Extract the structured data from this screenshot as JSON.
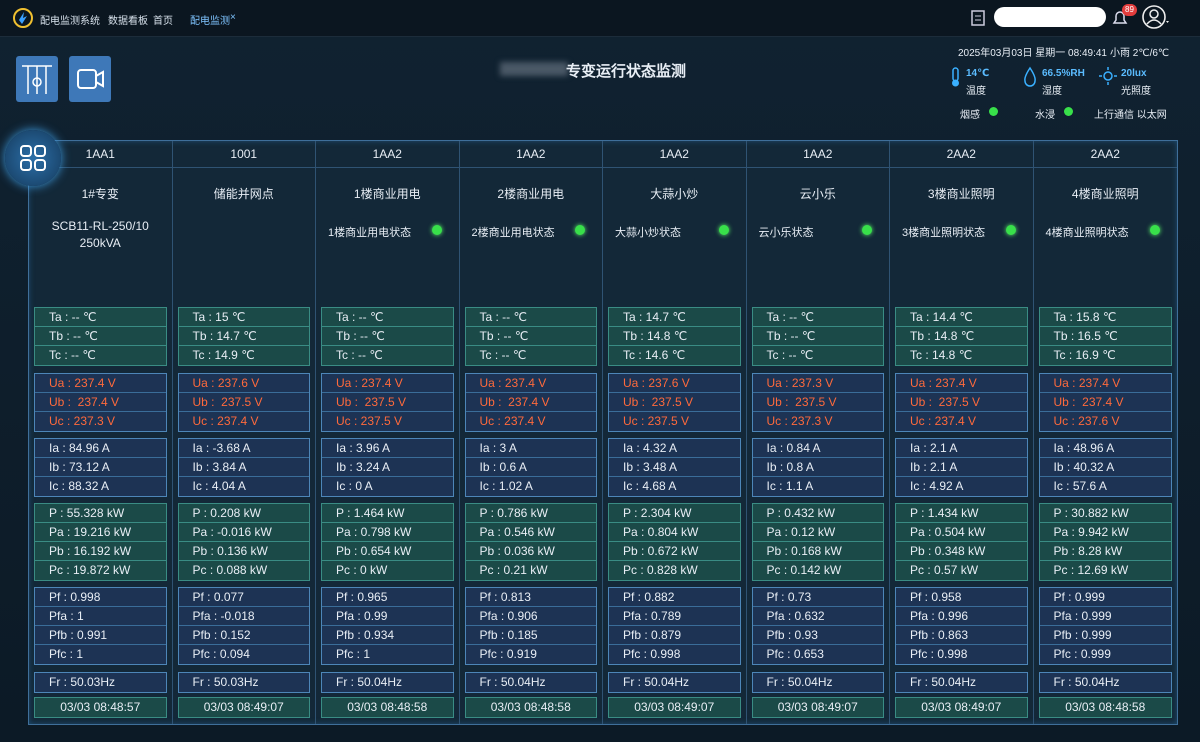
{
  "topbar": {
    "app_name": "配电监测系统",
    "tabs": [
      "数据看板",
      "首页",
      "配电监测"
    ],
    "close": "×",
    "badge": "89"
  },
  "header": {
    "title": "专变运行状态监测",
    "datetime": "2025年03月03日 星期一 08:49:41",
    "weather": "小雨 2℃/6℃",
    "env": [
      {
        "value": "14℃",
        "label": "温度"
      },
      {
        "value": "66.5%RH",
        "label": "湿度"
      },
      {
        "value": "20lux",
        "label": "光照度"
      }
    ],
    "status": [
      "烟感",
      "水浸",
      "上行通信 以太网"
    ]
  },
  "columns": [
    {
      "code": "1AA1",
      "name": "1#专变",
      "spec": [
        "SCB11-RL-250/10",
        "250kVA"
      ],
      "groups": [
        [
          "Ta : -- ℃",
          "Tb : -- ℃",
          "Tc : -- ℃"
        ],
        [
          "Ua : 237.4 V",
          "Ub :  237.4 V",
          "Uc : 237.3 V"
        ],
        [
          "Ia : 84.96 A",
          "Ib : 73.12 A",
          "Ic : 88.32 A"
        ],
        [
          "P : 55.328 kW",
          "Pa : 19.216 kW",
          "Pb : 16.192 kW",
          "Pc : 19.872 kW"
        ],
        [
          "Pf : 0.998",
          "Pfa : 1",
          "Pfb : 0.991",
          "Pfc : 1"
        ],
        [
          "Fr : 50.03Hz"
        ],
        [
          "03/03 08:48:57"
        ]
      ]
    },
    {
      "code": "1001",
      "name": "储能并网点",
      "groups": [
        [
          "Ta : 15 ℃",
          "Tb : 14.7 ℃",
          "Tc : 14.9 ℃"
        ],
        [
          "Ua : 237.6 V",
          "Ub :  237.5 V",
          "Uc : 237.4 V"
        ],
        [
          "Ia : -3.68 A",
          "Ib : 3.84 A",
          "Ic : 4.04 A"
        ],
        [
          "P : 0.208 kW",
          "Pa : -0.016 kW",
          "Pb : 0.136 kW",
          "Pc : 0.088 kW"
        ],
        [
          "Pf : 0.077",
          "Pfa : -0.018",
          "Pfb : 0.152",
          "Pfc : 0.094"
        ],
        [
          "Fr : 50.03Hz"
        ],
        [
          "03/03 08:49:07"
        ]
      ]
    },
    {
      "code": "1AA2",
      "name": "1楼商业用电",
      "status": "1楼商业用电状态",
      "groups": [
        [
          "Ta : -- ℃",
          "Tb : -- ℃",
          "Tc : -- ℃"
        ],
        [
          "Ua : 237.4 V",
          "Ub :  237.5 V",
          "Uc : 237.5 V"
        ],
        [
          "Ia : 3.96 A",
          "Ib : 3.24 A",
          "Ic : 0 A"
        ],
        [
          "P : 1.464 kW",
          "Pa : 0.798 kW",
          "Pb : 0.654 kW",
          "Pc : 0 kW"
        ],
        [
          "Pf : 0.965",
          "Pfa : 0.99",
          "Pfb : 0.934",
          "Pfc : 1"
        ],
        [
          "Fr : 50.04Hz"
        ],
        [
          "03/03 08:48:58"
        ]
      ]
    },
    {
      "code": "1AA2",
      "name": "2楼商业用电",
      "status": "2楼商业用电状态",
      "groups": [
        [
          "Ta : -- ℃",
          "Tb : -- ℃",
          "Tc : -- ℃"
        ],
        [
          "Ua : 237.4 V",
          "Ub :  237.4 V",
          "Uc : 237.4 V"
        ],
        [
          "Ia : 3 A",
          "Ib : 0.6 A",
          "Ic : 1.02 A"
        ],
        [
          "P : 0.786 kW",
          "Pa : 0.546 kW",
          "Pb : 0.036 kW",
          "Pc : 0.21 kW"
        ],
        [
          "Pf : 0.813",
          "Pfa : 0.906",
          "Pfb : 0.185",
          "Pfc : 0.919"
        ],
        [
          "Fr : 50.04Hz"
        ],
        [
          "03/03 08:48:58"
        ]
      ]
    },
    {
      "code": "1AA2",
      "name": "大蒜小炒",
      "status": "大蒜小炒状态",
      "groups": [
        [
          "Ta : 14.7 ℃",
          "Tb : 14.8 ℃",
          "Tc : 14.6 ℃"
        ],
        [
          "Ua : 237.6 V",
          "Ub :  237.5 V",
          "Uc : 237.5 V"
        ],
        [
          "Ia : 4.32 A",
          "Ib : 3.48 A",
          "Ic : 4.68 A"
        ],
        [
          "P : 2.304 kW",
          "Pa : 0.804 kW",
          "Pb : 0.672 kW",
          "Pc : 0.828 kW"
        ],
        [
          "Pf : 0.882",
          "Pfa : 0.789",
          "Pfb : 0.879",
          "Pfc : 0.998"
        ],
        [
          "Fr : 50.04Hz"
        ],
        [
          "03/03 08:49:07"
        ]
      ]
    },
    {
      "code": "1AA2",
      "name": "云小乐",
      "status": "云小乐状态",
      "groups": [
        [
          "Ta : -- ℃",
          "Tb : -- ℃",
          "Tc : -- ℃"
        ],
        [
          "Ua : 237.3 V",
          "Ub :  237.5 V",
          "Uc : 237.3 V"
        ],
        [
          "Ia : 0.84 A",
          "Ib : 0.8 A",
          "Ic : 1.1 A"
        ],
        [
          "P : 0.432 kW",
          "Pa : 0.12 kW",
          "Pb : 0.168 kW",
          "Pc : 0.142 kW"
        ],
        [
          "Pf : 0.73",
          "Pfa : 0.632",
          "Pfb : 0.93",
          "Pfc : 0.653"
        ],
        [
          "Fr : 50.04Hz"
        ],
        [
          "03/03 08:49:07"
        ]
      ]
    },
    {
      "code": "2AA2",
      "name": "3楼商业照明",
      "status": "3楼商业照明状态",
      "groups": [
        [
          "Ta : 14.4 ℃",
          "Tb : 14.8 ℃",
          "Tc : 14.8 ℃"
        ],
        [
          "Ua : 237.4 V",
          "Ub :  237.5 V",
          "Uc : 237.4 V"
        ],
        [
          "Ia : 2.1 A",
          "Ib : 2.1 A",
          "Ic : 4.92 A"
        ],
        [
          "P : 1.434 kW",
          "Pa : 0.504 kW",
          "Pb : 0.348 kW",
          "Pc : 0.57 kW"
        ],
        [
          "Pf : 0.958",
          "Pfa : 0.996",
          "Pfb : 0.863",
          "Pfc : 0.998"
        ],
        [
          "Fr : 50.04Hz"
        ],
        [
          "03/03 08:49:07"
        ]
      ]
    },
    {
      "code": "2AA2",
      "name": "4楼商业照明",
      "status": "4楼商业照明状态",
      "groups": [
        [
          "Ta : 15.8 ℃",
          "Tb : 16.5 ℃",
          "Tc : 16.9 ℃"
        ],
        [
          "Ua : 237.4 V",
          "Ub :  237.4 V",
          "Uc : 237.6 V"
        ],
        [
          "Ia : 48.96 A",
          "Ib : 40.32 A",
          "Ic : 57.6 A"
        ],
        [
          "P : 30.882 kW",
          "Pa : 9.942 kW",
          "Pb : 8.28 kW",
          "Pc : 12.69 kW"
        ],
        [
          "Pf : 0.999",
          "Pfa : 0.999",
          "Pfb : 0.999",
          "Pfc : 0.999"
        ],
        [
          "Fr : 50.04Hz"
        ],
        [
          "03/03 08:48:58"
        ]
      ]
    }
  ]
}
